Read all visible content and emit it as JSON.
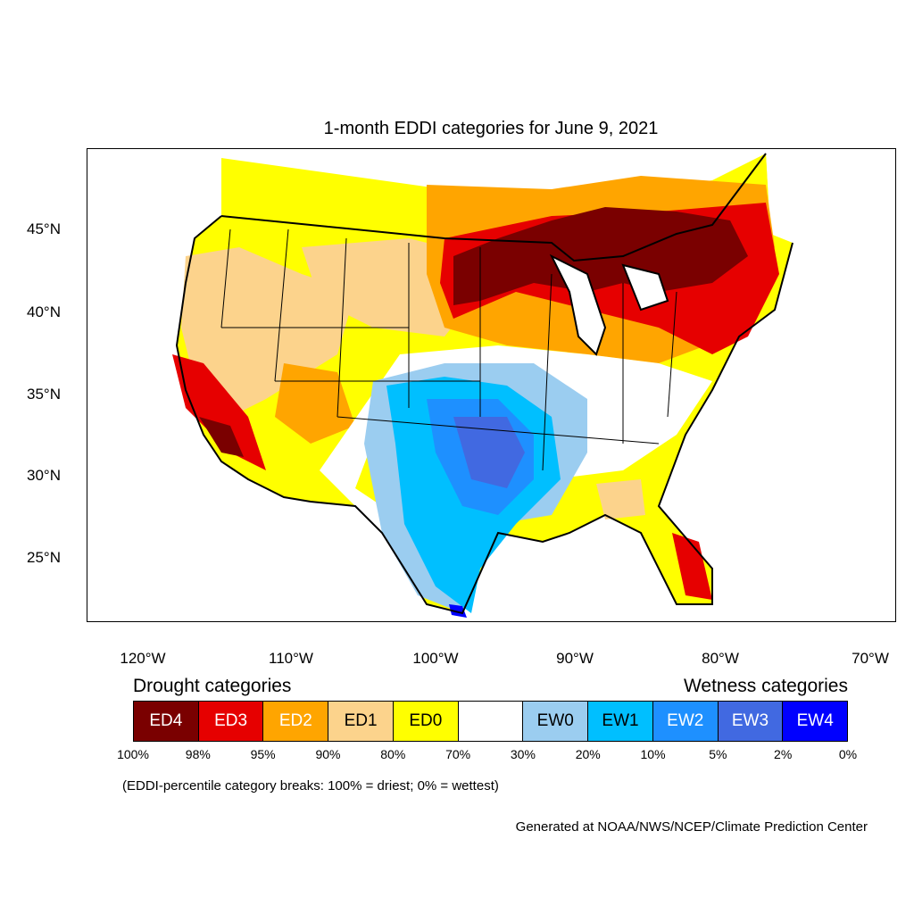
{
  "title": "1-month EDDI categories for June 9, 2021",
  "lat_labels": [
    "45°N",
    "40°N",
    "35°N",
    "30°N",
    "25°N"
  ],
  "lon_labels": [
    "120°W",
    "110°W",
    "100°W",
    "90°W",
    "80°W",
    "70°W"
  ],
  "legend": {
    "drought_heading": "Drought categories",
    "wetness_heading": "Wetness categories",
    "categories": [
      {
        "label": "ED4",
        "color": "#7a0000",
        "text_color": "#ffffff"
      },
      {
        "label": "ED3",
        "color": "#e60000",
        "text_color": "#ffffff"
      },
      {
        "label": "ED2",
        "color": "#ffa500",
        "text_color": "#ffffff"
      },
      {
        "label": "ED1",
        "color": "#fcd38c",
        "text_color": "#000000"
      },
      {
        "label": "ED0",
        "color": "#ffff00",
        "text_color": "#000000"
      },
      {
        "label": "",
        "color": "#ffffff",
        "text_color": "#000000"
      },
      {
        "label": "EW0",
        "color": "#9bcdf0",
        "text_color": "#000000"
      },
      {
        "label": "EW1",
        "color": "#00bfff",
        "text_color": "#000000"
      },
      {
        "label": "EW2",
        "color": "#1e90ff",
        "text_color": "#ffffff"
      },
      {
        "label": "EW3",
        "color": "#4169e1",
        "text_color": "#ffffff"
      },
      {
        "label": "EW4",
        "color": "#0000ff",
        "text_color": "#ffffff"
      }
    ],
    "breaks": [
      "100%",
      "98%",
      "95%",
      "90%",
      "80%",
      "70%",
      "30%",
      "20%",
      "10%",
      "5%",
      "2%",
      "0%"
    ]
  },
  "note": "(EDDI-percentile category breaks: 100% = driest; 0% = wettest)",
  "credit": "Generated at NOAA/NWS/NCEP/Climate Prediction Center"
}
